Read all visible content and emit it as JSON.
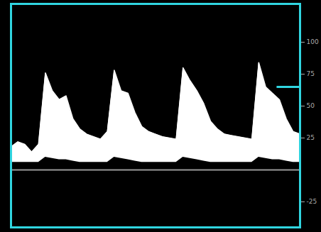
{
  "chart_data": {
    "type": "area",
    "x": [
      0,
      10,
      20,
      30,
      40,
      50,
      60,
      70,
      80,
      90,
      100,
      110,
      120,
      130,
      140,
      150,
      160,
      170,
      180,
      190,
      200,
      210,
      220,
      230,
      240,
      250,
      260,
      270,
      280,
      290,
      300,
      310,
      320,
      330,
      340,
      350,
      360,
      370,
      380,
      390,
      400,
      410,
      420
    ],
    "values": [
      18,
      22,
      20,
      14,
      20,
      76,
      62,
      55,
      58,
      40,
      32,
      28,
      26,
      24,
      30,
      78,
      62,
      60,
      45,
      34,
      30,
      28,
      26,
      25,
      24,
      80,
      70,
      62,
      52,
      38,
      32,
      28,
      27,
      26,
      25,
      24,
      84,
      65,
      60,
      55,
      40,
      30,
      28
    ],
    "lower": [
      6,
      6,
      6,
      6,
      6,
      10,
      9,
      8,
      8,
      7,
      6,
      6,
      6,
      6,
      6,
      10,
      9,
      8,
      7,
      6,
      6,
      6,
      6,
      6,
      6,
      10,
      9,
      8,
      7,
      6,
      6,
      6,
      6,
      6,
      6,
      6,
      10,
      9,
      8,
      8,
      7,
      6,
      6
    ],
    "color": "#ffffff",
    "baseline": 0,
    "cursor_value": 65,
    "xlim": [
      0,
      420
    ],
    "ylim": [
      -45,
      130
    ],
    "yticks": [
      -25,
      25,
      50,
      75,
      100
    ],
    "tick_labels": "y",
    "grid": false
  }
}
